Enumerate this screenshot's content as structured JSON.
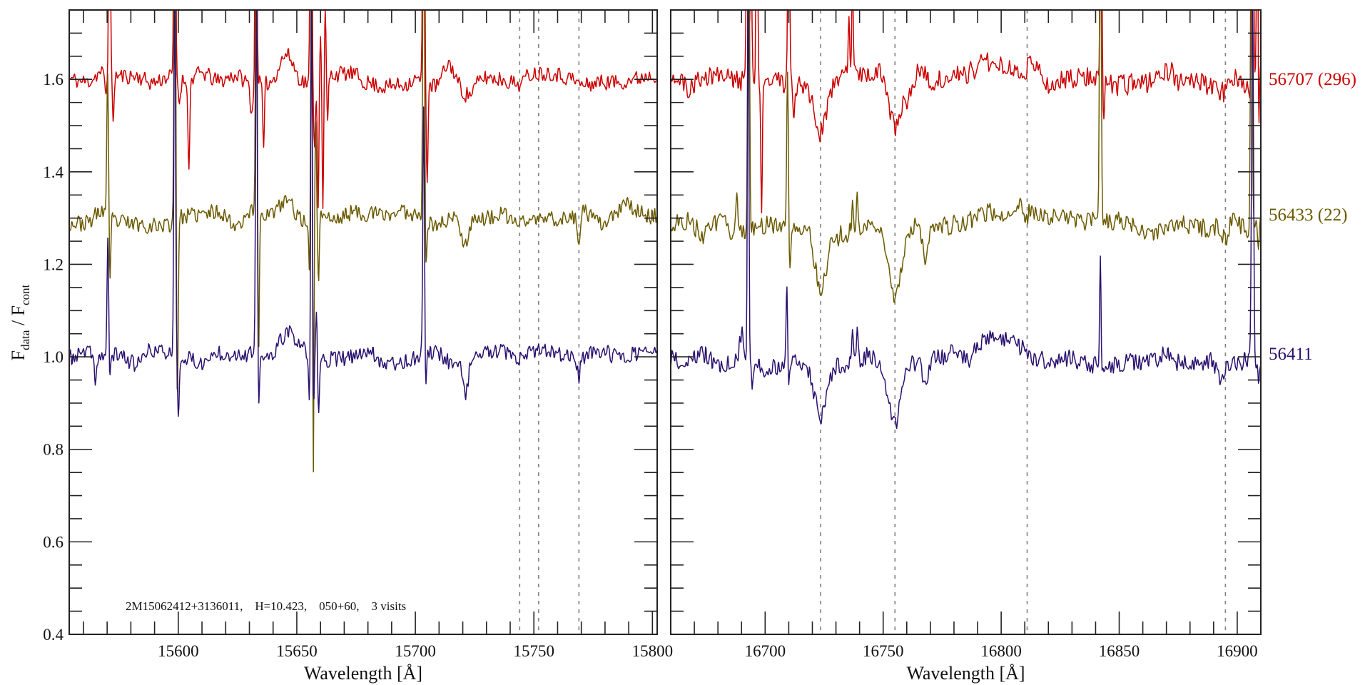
{
  "figure": {
    "ylabel": {
      "f1": "F",
      "sub1": "data",
      "sep": " / F",
      "sub2": "cont"
    },
    "annotation": "2M15062412+3136011,    H=10.423,    050+60,    3 visits",
    "series_labels": [
      {
        "text": "56707 (296)",
        "color": "#cc0000",
        "level": 1.6
      },
      {
        "text": "56433 (22)",
        "color": "#6b5a00",
        "level": 1.29
      },
      {
        "text": "56411",
        "color": "#2b1270",
        "level": 1.0
      }
    ]
  },
  "chart_data": [
    {
      "type": "line",
      "title": "",
      "xlabel": "Wavelength [Å]",
      "ylabel": "F_data / F_cont",
      "xlim": [
        15554,
        15802
      ],
      "ylim": [
        0.4,
        1.75
      ],
      "xticks": [
        15600,
        15650,
        15700,
        15750,
        15800
      ],
      "xtick_labels": [
        "15600",
        "15650",
        "15700",
        "15750",
        "15800"
      ],
      "yticks": [
        0.4,
        0.6,
        0.8,
        1.0,
        1.2,
        1.4,
        1.6
      ],
      "ytick_labels": [
        "0.4",
        "0.6",
        "0.8",
        "1.0",
        "1.2",
        "1.4",
        "1.6"
      ],
      "dashed_lines": [
        15744,
        15752,
        15769
      ],
      "series": [
        {
          "name": "56707 (296)",
          "color": "#cc0000",
          "offset": 1.6,
          "noise": 0.018,
          "seed": 11,
          "features": [
            [
              15569.5,
              -0.04,
              0.6
            ],
            [
              15571,
              0.5,
              0.35
            ],
            [
              15572.5,
              -0.1,
              0.35
            ],
            [
              15598.5,
              0.8,
              0.35
            ],
            [
              15600.5,
              -0.05,
              0.4
            ],
            [
              15604.5,
              -0.2,
              0.35
            ],
            [
              15632.8,
              0.8,
              0.35
            ],
            [
              15636,
              -0.15,
              0.35
            ],
            [
              15631,
              -0.06,
              0.6
            ],
            [
              15656,
              0.8,
              0.35
            ],
            [
              15657.5,
              -0.12,
              0.4
            ],
            [
              15659,
              -0.25,
              0.3
            ],
            [
              15660,
              0.12,
              0.3
            ],
            [
              15661,
              -0.28,
              0.3
            ],
            [
              15662,
              0.15,
              0.3
            ],
            [
              15663,
              -0.1,
              0.3
            ],
            [
              15646,
              0.04,
              3
            ],
            [
              15703.5,
              0.8,
              0.35
            ],
            [
              15705,
              -0.2,
              0.35
            ],
            [
              15714,
              0.03,
              2
            ],
            [
              15722,
              -0.04,
              3
            ]
          ]
        },
        {
          "name": "56433 (22)",
          "color": "#6b5a00",
          "offset": 1.3,
          "noise": 0.018,
          "seed": 23,
          "features": [
            [
              15570.2,
              0.3,
              0.35
            ],
            [
              15571.2,
              -0.15,
              0.35
            ],
            [
              15598.6,
              0.8,
              0.35
            ],
            [
              15599.6,
              -0.4,
              0.35
            ],
            [
              15633,
              0.8,
              0.35
            ],
            [
              15633.8,
              -0.35,
              0.35
            ],
            [
              15655.6,
              -0.2,
              0.4
            ],
            [
              15656.2,
              0.8,
              0.35
            ],
            [
              15656.9,
              -0.65,
              0.3
            ],
            [
              15658,
              0.2,
              0.3
            ],
            [
              15659.2,
              -0.15,
              0.35
            ],
            [
              15646,
              0.04,
              3
            ],
            [
              15703.5,
              0.8,
              0.35
            ],
            [
              15704.5,
              -0.1,
              0.35
            ],
            [
              15721,
              -0.06,
              1.5
            ],
            [
              15769,
              -0.06,
              0.6
            ],
            [
              15787,
              0.03,
              3
            ]
          ]
        },
        {
          "name": "56411",
          "color": "#2b1270",
          "offset": 1.0,
          "noise": 0.018,
          "seed": 37,
          "features": [
            [
              15565,
              -0.05,
              0.5
            ],
            [
              15570.3,
              0.25,
              0.35
            ],
            [
              15571,
              -0.06,
              0.3
            ],
            [
              15598.5,
              0.8,
              0.35
            ],
            [
              15600,
              -0.12,
              0.35
            ],
            [
              15633,
              0.8,
              0.35
            ],
            [
              15633.8,
              -0.14,
              0.35
            ],
            [
              15655.5,
              -0.14,
              0.4
            ],
            [
              15656.2,
              0.8,
              0.35
            ],
            [
              15657,
              -0.15,
              0.3
            ],
            [
              15658.3,
              0.1,
              0.3
            ],
            [
              15659.2,
              -0.12,
              0.35
            ],
            [
              15646,
              0.04,
              3
            ],
            [
              15703.5,
              0.55,
              0.35
            ],
            [
              15704.3,
              -0.08,
              0.3
            ],
            [
              15721,
              -0.07,
              1.2
            ],
            [
              15769,
              -0.05,
              0.6
            ]
          ]
        }
      ]
    },
    {
      "type": "line",
      "title": "",
      "xlabel": "Wavelength [Å]",
      "ylabel": "",
      "xlim": [
        16660,
        16910
      ],
      "ylim": [
        0.4,
        1.75
      ],
      "xticks": [
        16700,
        16750,
        16800,
        16850,
        16900
      ],
      "xtick_labels": [
        "16700",
        "16750",
        "16800",
        "16850",
        "16900"
      ],
      "yticks": [
        0.4,
        0.6,
        0.8,
        1.0,
        1.2,
        1.4,
        1.6
      ],
      "ytick_labels": [],
      "dashed_lines": [
        16723.5,
        16755,
        16811,
        16895
      ],
      "series": [
        {
          "name": "56707 (296)",
          "color": "#cc0000",
          "offset": 1.6,
          "noise": 0.024,
          "seed": 51,
          "features": [
            [
              16692.5,
              0.9,
              0.35
            ],
            [
              16694,
              0.3,
              0.35
            ],
            [
              16696.5,
              0.5,
              0.35
            ],
            [
              16698.5,
              -0.3,
              0.3
            ],
            [
              16710,
              0.6,
              0.35
            ],
            [
              16712,
              -0.06,
              0.4
            ],
            [
              16723.5,
              -0.1,
              2.5
            ],
            [
              16737,
              0.2,
              0.3
            ],
            [
              16735.5,
              0.12,
              0.3
            ],
            [
              16755,
              -0.11,
              2.5
            ],
            [
              16761,
              -0.04,
              1
            ],
            [
              16800,
              0.04,
              12
            ],
            [
              16842.3,
              0.5,
              0.35
            ],
            [
              16843.5,
              -0.08,
              0.35
            ],
            [
              16895,
              -0.03,
              2
            ],
            [
              16906.5,
              0.8,
              0.35
            ],
            [
              16908.5,
              0.5,
              0.3
            ],
            [
              16909,
              -0.15,
              0.3
            ]
          ]
        },
        {
          "name": "56433 (22)",
          "color": "#6b5a00",
          "offset": 1.28,
          "noise": 0.022,
          "seed": 63,
          "features": [
            [
              16688,
              0.09,
              0.6
            ],
            [
              16693,
              0.9,
              0.35
            ],
            [
              16709.5,
              0.35,
              0.35
            ],
            [
              16710.5,
              -0.1,
              0.35
            ],
            [
              16723.5,
              -0.14,
              2.5
            ],
            [
              16737,
              0.08,
              0.3
            ],
            [
              16739,
              0.08,
              0.3
            ],
            [
              16755,
              -0.16,
              2.5
            ],
            [
              16768,
              -0.07,
              1.2
            ],
            [
              16800,
              0.04,
              12
            ],
            [
              16808,
              0.04,
              0.8
            ],
            [
              16842,
              0.8,
              0.35
            ],
            [
              16895,
              -0.04,
              1
            ],
            [
              16906,
              0.8,
              0.35
            ],
            [
              16909,
              -0.05,
              0.3
            ]
          ]
        },
        {
          "name": "56411",
          "color": "#2b1270",
          "offset": 0.99,
          "noise": 0.02,
          "seed": 79,
          "focus": "",
          "features": [
            [
              16690,
              0.06,
              0.8
            ],
            [
              16692.8,
              0.9,
              0.3
            ],
            [
              16694.5,
              -0.06,
              0.3
            ],
            [
              16709.3,
              0.18,
              0.35
            ],
            [
              16709.8,
              -0.08,
              0.3
            ],
            [
              16723.5,
              -0.12,
              2.5
            ],
            [
              16737,
              0.08,
              0.3
            ],
            [
              16739,
              0.06,
              0.3
            ],
            [
              16755,
              -0.14,
              2.5
            ],
            [
              16768,
              -0.05,
              1.2
            ],
            [
              16800,
              0.04,
              12
            ],
            [
              16842,
              0.22,
              0.3
            ],
            [
              16843.5,
              -0.02,
              0.5
            ],
            [
              16893,
              -0.05,
              1.5
            ],
            [
              16906.5,
              0.8,
              0.4
            ],
            [
              16909,
              -0.03,
              0.3
            ]
          ]
        }
      ]
    }
  ]
}
